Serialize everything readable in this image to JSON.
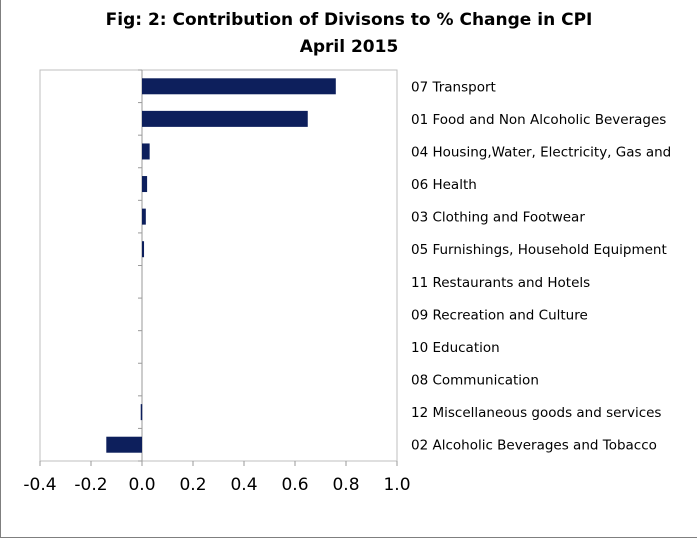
{
  "chart_data": {
    "type": "bar",
    "orientation": "horizontal",
    "title": "Fig: 2: Contribution of Divisons to % Change in CPI",
    "subtitle": "April 2015",
    "categories": [
      "07 Transport",
      "01 Food and Non Alcoholic Beverages",
      "04 Housing,Water, Electricity, Gas and",
      "06 Health",
      "03 Clothing and Footwear",
      "05 Furnishings, Household Equipment",
      "11 Restaurants and Hotels",
      "09 Recreation and Culture",
      "10 Education",
      "08 Communication",
      "12 Miscellaneous goods and services",
      "02 Alcoholic Beverages and Tobacco"
    ],
    "values": [
      0.76,
      0.65,
      0.03,
      0.02,
      0.015,
      0.008,
      0.0,
      0.0,
      0.0,
      0.0,
      -0.005,
      -0.14
    ],
    "xlim": [
      -0.4,
      1.0
    ],
    "xticks": [
      "-0.4",
      "-0.2",
      "0.0",
      "0.2",
      "0.4",
      "0.6",
      "0.8",
      "1.0"
    ],
    "xtick_values": [
      -0.4,
      -0.2,
      0.0,
      0.2,
      0.4,
      0.6,
      0.8,
      1.0
    ],
    "grid": false,
    "legend": "none",
    "bar_color": "#0d1f5c"
  }
}
